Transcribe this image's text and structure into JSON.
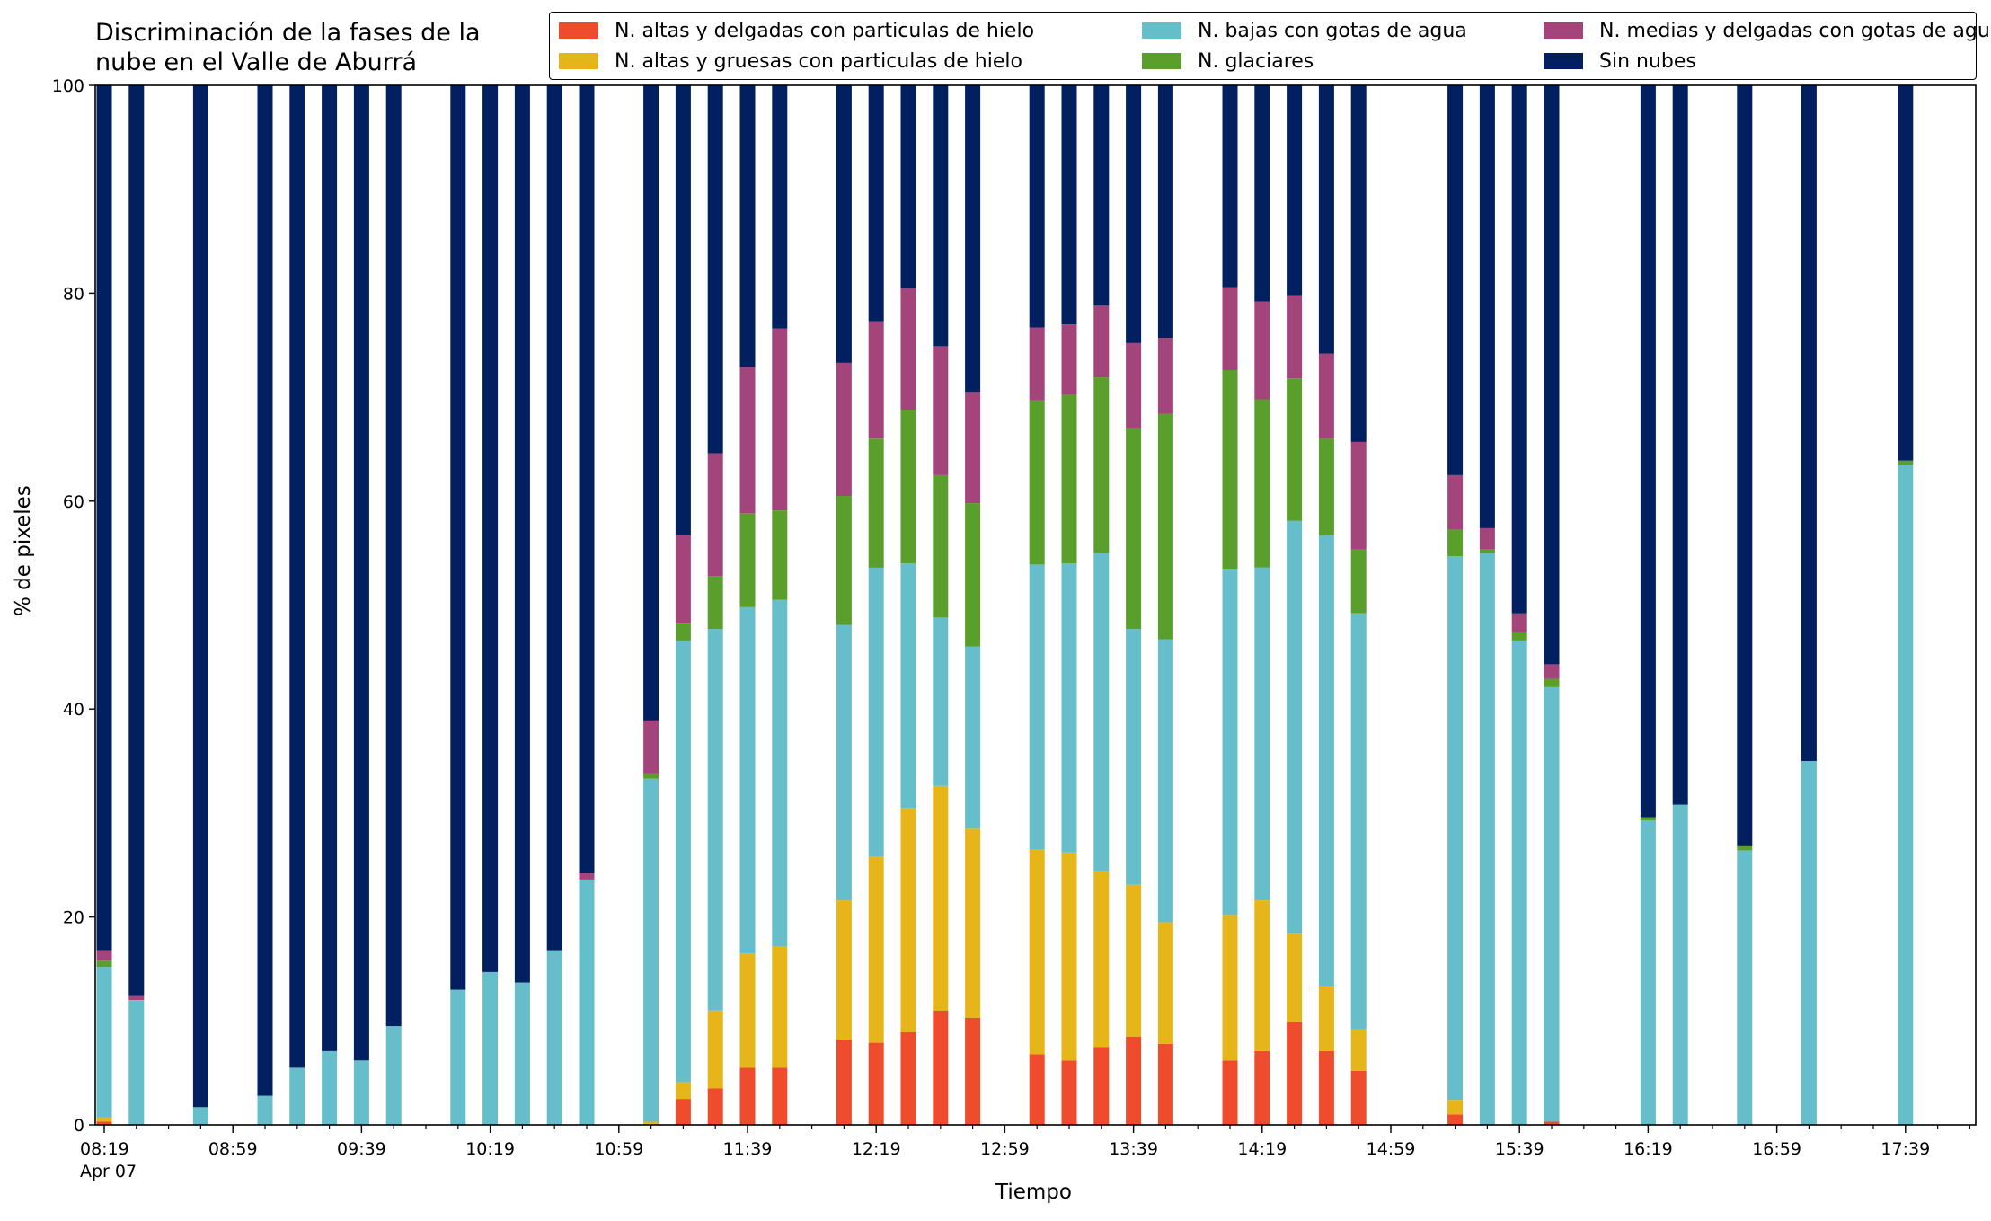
{
  "chart_data": {
    "type": "bar",
    "stacked": true,
    "title_lines": [
      "Discriminación de la fases de la",
      "nube en el Valle de Aburrá"
    ],
    "xlabel": "Tiempo",
    "ylabel": "% de pixeles",
    "ylim": [
      0,
      100
    ],
    "yticks": [
      0,
      20,
      40,
      60,
      80,
      100
    ],
    "x_date_label": "Apr 07",
    "xlim": [
      "08:19",
      "17:59"
    ],
    "xticks": [
      "08:19",
      "08:59",
      "09:39",
      "10:19",
      "10:59",
      "11:39",
      "12:19",
      "12:59",
      "13:39",
      "14:19",
      "14:59",
      "15:39",
      "16:19",
      "16:59",
      "17:39"
    ],
    "legend_position": "top-right",
    "grid": false,
    "series": [
      {
        "name": "N. altas y delgadas con particulas de hielo",
        "color": "#EE4C2C"
      },
      {
        "name": "N. altas y gruesas con particulas de hielo",
        "color": "#E6B519"
      },
      {
        "name": "N. bajas con gotas de agua",
        "color": "#66BECB"
      },
      {
        "name": "N. glaciares",
        "color": "#5A9E2C"
      },
      {
        "name": "N. medias y delgadas con gotas de agua",
        "color": "#A3457A"
      },
      {
        "name": "Sin nubes",
        "color": "#021F5F"
      }
    ],
    "bars": [
      {
        "time": "08:19",
        "values": [
          0.3,
          0.4,
          14.5,
          0.6,
          1.0,
          83.2
        ]
      },
      {
        "time": "08:29",
        "values": [
          0,
          0,
          12.0,
          0,
          0.4,
          87.6
        ]
      },
      {
        "time": "08:49",
        "values": [
          0,
          0,
          1.7,
          0,
          0,
          98.3
        ]
      },
      {
        "time": "09:09",
        "values": [
          0,
          0,
          2.8,
          0,
          0,
          97.2
        ]
      },
      {
        "time": "09:19",
        "values": [
          0,
          0,
          5.5,
          0,
          0,
          94.5
        ]
      },
      {
        "time": "09:29",
        "values": [
          0,
          0,
          7.1,
          0,
          0,
          92.9
        ]
      },
      {
        "time": "09:39",
        "values": [
          0,
          0,
          6.2,
          0,
          0,
          93.8
        ]
      },
      {
        "time": "09:49",
        "values": [
          0,
          0,
          9.5,
          0,
          0,
          90.5
        ]
      },
      {
        "time": "10:09",
        "values": [
          0,
          0,
          13.0,
          0,
          0,
          87.0
        ]
      },
      {
        "time": "10:19",
        "values": [
          0,
          0,
          14.7,
          0,
          0,
          85.3
        ]
      },
      {
        "time": "10:29",
        "values": [
          0,
          0,
          13.7,
          0,
          0,
          86.3
        ]
      },
      {
        "time": "10:39",
        "values": [
          0,
          0,
          16.8,
          0,
          0,
          83.2
        ]
      },
      {
        "time": "10:49",
        "values": [
          0,
          0,
          23.6,
          0,
          0.6,
          75.8
        ]
      },
      {
        "time": "11:09",
        "values": [
          0,
          0.3,
          33.0,
          0.5,
          5.1,
          61.1
        ]
      },
      {
        "time": "11:19",
        "values": [
          2.5,
          1.6,
          42.5,
          1.7,
          8.4,
          43.3
        ]
      },
      {
        "time": "11:29",
        "values": [
          3.5,
          7.5,
          36.7,
          5.1,
          11.8,
          35.4
        ]
      },
      {
        "time": "11:39",
        "values": [
          5.5,
          11.0,
          33.3,
          9.0,
          14.1,
          27.1
        ]
      },
      {
        "time": "11:49",
        "values": [
          5.5,
          11.7,
          33.3,
          8.6,
          17.5,
          23.4
        ]
      },
      {
        "time": "12:09",
        "values": [
          8.2,
          13.4,
          26.5,
          12.4,
          12.8,
          26.7
        ]
      },
      {
        "time": "12:19",
        "values": [
          7.9,
          17.9,
          27.8,
          12.4,
          11.3,
          22.7
        ]
      },
      {
        "time": "12:29",
        "values": [
          8.9,
          21.6,
          23.5,
          14.8,
          11.7,
          19.5
        ]
      },
      {
        "time": "12:39",
        "values": [
          11.0,
          21.6,
          16.2,
          13.7,
          12.4,
          25.1
        ]
      },
      {
        "time": "12:49",
        "values": [
          10.3,
          18.2,
          17.5,
          13.8,
          10.7,
          29.5
        ]
      },
      {
        "time": "13:09",
        "values": [
          6.8,
          19.7,
          27.4,
          15.8,
          7.0,
          23.3
        ]
      },
      {
        "time": "13:19",
        "values": [
          6.2,
          20.0,
          27.8,
          16.2,
          6.8,
          23.0
        ]
      },
      {
        "time": "13:29",
        "values": [
          7.5,
          16.9,
          30.6,
          16.9,
          6.9,
          21.2
        ]
      },
      {
        "time": "13:39",
        "values": [
          8.5,
          14.6,
          24.6,
          19.3,
          8.2,
          24.8
        ]
      },
      {
        "time": "13:49",
        "values": [
          7.8,
          11.7,
          27.2,
          21.7,
          7.3,
          24.3
        ]
      },
      {
        "time": "14:09",
        "values": [
          6.2,
          14.0,
          33.3,
          19.1,
          8.0,
          19.4
        ]
      },
      {
        "time": "14:19",
        "values": [
          7.1,
          14.5,
          32.0,
          16.2,
          9.4,
          20.8
        ]
      },
      {
        "time": "14:29",
        "values": [
          9.9,
          8.5,
          39.7,
          13.7,
          8.0,
          20.2
        ]
      },
      {
        "time": "14:39",
        "values": [
          7.1,
          6.3,
          43.3,
          9.3,
          8.2,
          25.8
        ]
      },
      {
        "time": "14:49",
        "values": [
          5.2,
          4.0,
          40.0,
          6.2,
          10.3,
          34.3
        ]
      },
      {
        "time": "15:19",
        "values": [
          1.0,
          1.4,
          52.3,
          2.6,
          5.2,
          37.5
        ]
      },
      {
        "time": "15:29",
        "values": [
          0,
          0,
          55.0,
          0.4,
          2.0,
          42.6
        ]
      },
      {
        "time": "15:39",
        "values": [
          0,
          0,
          46.6,
          0.8,
          1.8,
          50.8
        ]
      },
      {
        "time": "15:49",
        "values": [
          0.3,
          0,
          41.8,
          0.8,
          1.4,
          55.7
        ]
      },
      {
        "time": "16:19",
        "values": [
          0,
          0,
          29.3,
          0.3,
          0,
          70.4
        ]
      },
      {
        "time": "16:29",
        "values": [
          0,
          0,
          30.8,
          0,
          0,
          69.2
        ]
      },
      {
        "time": "16:49",
        "values": [
          0,
          0,
          26.4,
          0.4,
          0,
          73.2
        ]
      },
      {
        "time": "17:09",
        "values": [
          0,
          0,
          35.0,
          0,
          0,
          65.0
        ]
      },
      {
        "time": "17:39",
        "values": [
          0,
          0,
          63.5,
          0.4,
          0,
          36.1
        ]
      }
    ]
  }
}
